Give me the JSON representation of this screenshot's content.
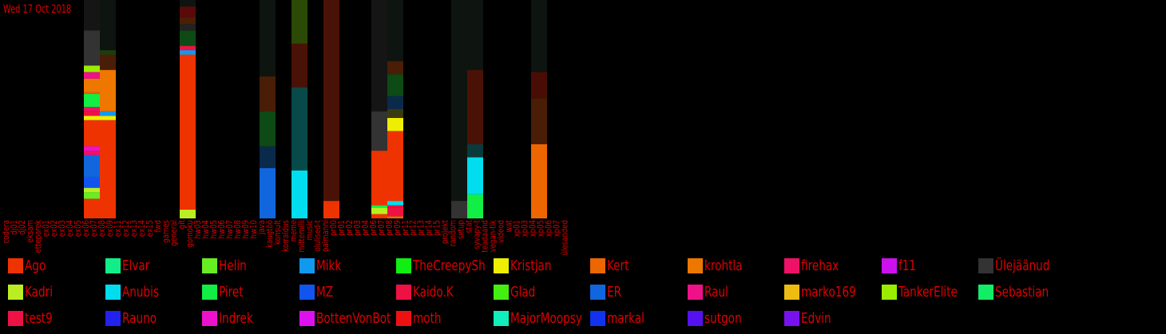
{
  "date": "Wed 17 Oct 2018",
  "colors": {
    "background": "#000000",
    "text": "#dd0000"
  },
  "chart_data": {
    "type": "bar",
    "stacked": true,
    "normalized": true,
    "categories": [
      "codera",
      "dj01",
      "dj02",
      "eksam",
      "etteparek",
      "ex01",
      "ex02",
      "ex03",
      "ex04",
      "ex05",
      "ex06",
      "ex07",
      "ex08",
      "ex09",
      "ex11",
      "ex12",
      "ex13",
      "ex14",
      "ex15",
      "fwd",
      "games",
      "general",
      "git",
      "gomoku",
      "hw03",
      "hw04",
      "hw05",
      "hw06",
      "hw07",
      "hw08",
      "hw09",
      "hw10",
      "java",
      "kaugtöö",
      "konsult",
      "korraldus",
      "meme",
      "mittemilli",
      "music",
      "olulised-t",
      "palmanni",
      "pr00",
      "pr01",
      "pr02",
      "pr03",
      "pr04",
      "pr06",
      "pr07",
      "pr08",
      "pr09",
      "pr11",
      "pr12",
      "pr13",
      "pr14",
      "pr15",
      "projekt",
      "random",
      "setup",
      "stat",
      "syvapy-t",
      "teadaand",
      "vegan-tik",
      "videod",
      "wat",
      "xp01",
      "xp03",
      "xp04",
      "xp05",
      "xp06",
      "xp07",
      "ülesanded"
    ],
    "backgrounds": [
      {
        "category": "ex05",
        "shade": "#151515"
      },
      {
        "category": "ex06",
        "shade": "#151515"
      },
      {
        "category": "ex07",
        "shade": "#0e1410"
      },
      {
        "category": "general",
        "shade": "#0e1410"
      },
      {
        "category": "java",
        "shade": "#0e1410"
      },
      {
        "category": "meme",
        "shade": "#0e1410"
      },
      {
        "category": "olulised-t",
        "shade": "#0e1410"
      },
      {
        "category": "pr06",
        "shade": "#151515"
      },
      {
        "category": "pr07",
        "shade": "#0e1410"
      },
      {
        "category": "random",
        "shade": "#0e1410"
      },
      {
        "category": "stat",
        "shade": "#0e1410"
      },
      {
        "category": "xp03",
        "shade": "#0e1410"
      }
    ],
    "bars": [
      {
        "category": "ex05",
        "segments": [
          {
            "series": "Ülejäänud",
            "value": 0.17,
            "color": "#333333"
          }
        ]
      },
      {
        "category": "ex06",
        "segments": [
          {
            "series": "Ago",
            "value": 0.09,
            "color": "#ee3300"
          },
          {
            "series": "Helin",
            "value": 0.03,
            "color": "#66ee22"
          },
          {
            "series": "Kadri",
            "value": 0.02,
            "color": "#bbee22"
          },
          {
            "series": "MZ",
            "value": 0.05,
            "color": "#1155ee"
          },
          {
            "series": "ER",
            "value": 0.1,
            "color": "#1166dd"
          },
          {
            "series": "firehax",
            "value": 0.02,
            "color": "#ee1166"
          },
          {
            "series": "Indrek",
            "value": 0.02,
            "color": "#ee11cc"
          },
          {
            "series": "Ago",
            "value": 0.12,
            "color": "#ee3300"
          },
          {
            "series": "Kristjan",
            "value": 0.02,
            "color": "#eeee00"
          },
          {
            "series": "test9",
            "value": 0.02,
            "color": "#ee1144"
          },
          {
            "series": "firehax",
            "value": 0.02,
            "color": "#ee1166"
          },
          {
            "series": "Piret",
            "value": 0.06,
            "color": "#11ee44"
          },
          {
            "series": "Kert",
            "value": 0.01,
            "color": "#ee6600"
          },
          {
            "series": "krohtla",
            "value": 0.06,
            "color": "#ee7700"
          },
          {
            "series": "Raul",
            "value": 0.03,
            "color": "#ee1188"
          },
          {
            "series": "TankerElite",
            "value": 0.03,
            "color": "#99ee00"
          },
          {
            "series": "Ülejäänud",
            "value": 0.16,
            "color": "#333333"
          }
        ]
      },
      {
        "category": "ex07",
        "segments": [
          {
            "series": "Ago",
            "value": 0.45,
            "color": "#ee3300"
          },
          {
            "series": "Kristjan",
            "value": 0.02,
            "color": "#eeee00"
          },
          {
            "series": "Mikk",
            "value": 0.02,
            "color": "#1199ee"
          },
          {
            "series": "krohtla",
            "value": 0.19,
            "color": "#ee7700"
          },
          {
            "series": "-",
            "value": 0.07,
            "color": "#4a1d06"
          },
          {
            "series": "-",
            "value": 0.02,
            "color": "#1e3d0c"
          }
        ]
      },
      {
        "category": "general",
        "segments": [
          {
            "series": "Kadri",
            "value": 0.04,
            "color": "#bbee22"
          },
          {
            "series": "Ago",
            "value": 0.71,
            "color": "#ee3300"
          },
          {
            "series": "Mikk",
            "value": 0.02,
            "color": "#1199ee"
          },
          {
            "series": "Kaido.K",
            "value": 0.02,
            "color": "#ee1144"
          },
          {
            "series": "-",
            "value": 0.07,
            "color": "#0d4a15"
          },
          {
            "series": "-",
            "value": 0.03,
            "color": "#222222"
          },
          {
            "series": "-",
            "value": 0.03,
            "color": "#4a2000"
          },
          {
            "series": "-",
            "value": 0.05,
            "color": "#5a0a0a"
          }
        ]
      },
      {
        "category": "java",
        "segments": [
          {
            "series": "ER",
            "value": 0.23,
            "color": "#1166dd"
          },
          {
            "series": "-",
            "value": 0.1,
            "color": "#0a2a4a"
          },
          {
            "series": "-",
            "value": 0.16,
            "color": "#0d4a15"
          },
          {
            "series": "-",
            "value": 0.16,
            "color": "#4a1d06"
          }
        ]
      },
      {
        "category": "meme",
        "segments": [
          {
            "series": "Anubis",
            "value": 0.22,
            "color": "#00ddee"
          },
          {
            "series": "-",
            "value": 0.38,
            "color": "#084a4a"
          },
          {
            "series": "-",
            "value": 0.2,
            "color": "#4a1206"
          },
          {
            "series": "-",
            "value": 0.2,
            "color": "#2a4a06"
          }
        ]
      },
      {
        "category": "olulised-t",
        "segments": [
          {
            "series": "Ago",
            "value": 0.08,
            "color": "#ee3300"
          },
          {
            "series": "-",
            "value": 0.92,
            "color": "#4a1206"
          }
        ]
      },
      {
        "category": "pr06",
        "segments": [
          {
            "series": "Ago",
            "value": 0.02,
            "color": "#ee3300"
          },
          {
            "series": "Kadri",
            "value": 0.03,
            "color": "#bbee22"
          },
          {
            "series": "Piret",
            "value": 0.01,
            "color": "#11ee44"
          },
          {
            "series": "Ago",
            "value": 0.25,
            "color": "#ee3300"
          },
          {
            "series": "Ülejäänud",
            "value": 0.18,
            "color": "#333333"
          }
        ]
      },
      {
        "category": "pr07",
        "segments": [
          {
            "series": "Kert",
            "value": 0.01,
            "color": "#ee6600"
          },
          {
            "series": "test9",
            "value": 0.04,
            "color": "#ee1144"
          },
          {
            "series": "Kaido.K",
            "value": 0.01,
            "color": "#ee1144"
          },
          {
            "series": "Anubis",
            "value": 0.02,
            "color": "#00ddee"
          },
          {
            "series": "Ago",
            "value": 0.32,
            "color": "#ee3300"
          },
          {
            "series": "Kristjan",
            "value": 0.06,
            "color": "#eeee00"
          },
          {
            "series": "-",
            "value": 0.04,
            "color": "#3a3a10"
          },
          {
            "series": "-",
            "value": 0.06,
            "color": "#0a2a4a"
          },
          {
            "series": "-",
            "value": 0.1,
            "color": "#0d4a15"
          },
          {
            "series": "-",
            "value": 0.06,
            "color": "#4a1d06"
          }
        ]
      },
      {
        "category": "random",
        "segments": [
          {
            "series": "Ülejäänud",
            "value": 0.08,
            "color": "#333333"
          }
        ]
      },
      {
        "category": "stat",
        "segments": [
          {
            "series": "Piret",
            "value": 0.11,
            "color": "#11ee44"
          },
          {
            "series": "Anubis",
            "value": 0.17,
            "color": "#00ddee"
          },
          {
            "series": "-",
            "value": 0.06,
            "color": "#0a3a3a"
          },
          {
            "series": "-",
            "value": 0.34,
            "color": "#4a1206"
          }
        ]
      },
      {
        "category": "xp03",
        "segments": [
          {
            "series": "Kert",
            "value": 0.34,
            "color": "#ee6600"
          },
          {
            "series": "-",
            "value": 0.21,
            "color": "#4a1d06"
          },
          {
            "series": "-",
            "value": 0.12,
            "color": "#4a0d06"
          }
        ]
      }
    ]
  },
  "legend": [
    {
      "name": "Ago",
      "color": "#ee3300"
    },
    {
      "name": "Elvar",
      "color": "#11ee88"
    },
    {
      "name": "Helin",
      "color": "#66ee22"
    },
    {
      "name": "Mikk",
      "color": "#1199ee"
    },
    {
      "name": "TheCreepySh",
      "color": "#11ee11"
    },
    {
      "name": "Kristjan",
      "color": "#eeee00"
    },
    {
      "name": "Kert",
      "color": "#ee6600"
    },
    {
      "name": "krohtla",
      "color": "#ee7700"
    },
    {
      "name": "firehax",
      "color": "#ee1166"
    },
    {
      "name": "f11",
      "color": "#cc11ee"
    },
    {
      "name": "Ülejäänud",
      "color": "#333333"
    },
    {
      "name": "Kadri",
      "color": "#bbee22"
    },
    {
      "name": "Anubis",
      "color": "#00ddee"
    },
    {
      "name": "Piret",
      "color": "#11ee44"
    },
    {
      "name": "MZ",
      "color": "#1155ee"
    },
    {
      "name": "Kaido.K",
      "color": "#ee1144"
    },
    {
      "name": "Glad",
      "color": "#44ee11"
    },
    {
      "name": "ER",
      "color": "#1166dd"
    },
    {
      "name": "Raul",
      "color": "#ee1188"
    },
    {
      "name": "marko169",
      "color": "#eebb11"
    },
    {
      "name": "TankerElite",
      "color": "#99ee00"
    },
    {
      "name": "Sebastian",
      "color": "#11ee66"
    },
    {
      "name": "test9",
      "color": "#ee1144"
    },
    {
      "name": "Rauno",
      "color": "#2222ee"
    },
    {
      "name": "Indrek",
      "color": "#ee11cc"
    },
    {
      "name": "BottenVonBot",
      "color": "#dd11ee"
    },
    {
      "name": "moth",
      "color": "#ee1111"
    },
    {
      "name": "MajorMoopsy",
      "color": "#11eebb"
    },
    {
      "name": "markal",
      "color": "#1133ee"
    },
    {
      "name": "sutgon",
      "color": "#5511ee"
    },
    {
      "name": "Edvin",
      "color": "#7711ee"
    }
  ]
}
